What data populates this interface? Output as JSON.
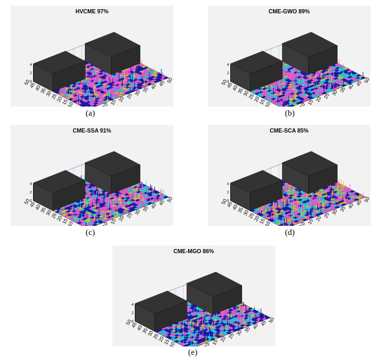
{
  "figure": {
    "panels": [
      {
        "id": "a",
        "title": "HVCME 97%",
        "caption": "(a)"
      },
      {
        "id": "b",
        "title": "CME-GWO 89%",
        "caption": "(b)"
      },
      {
        "id": "c",
        "title": "CME-SSA 91%",
        "caption": "(c)"
      },
      {
        "id": "d",
        "title": "CME-SCA 85%",
        "caption": "(d)"
      },
      {
        "id": "e",
        "title": "CME-MGO 86%",
        "caption": "(e)"
      }
    ]
  },
  "chart_data": [
    {
      "type": "bar3d",
      "title": "HVCME 97%",
      "xticks": [
        "0",
        "5",
        "10",
        "15",
        "20",
        "25",
        "30",
        "35",
        "40",
        "45",
        "50"
      ],
      "yticks": [
        "0",
        "5",
        "10",
        "15",
        "20",
        "25",
        "30",
        "35",
        "40",
        "45",
        "50"
      ],
      "zticks": [
        "0",
        "2",
        "4"
      ],
      "coverage_percent": 97,
      "dominant_colors": [
        "#ff66cc",
        "#1a1aa8",
        "#33dddd",
        "#dddd33"
      ],
      "obstacle_color": "#333333"
    },
    {
      "type": "bar3d",
      "title": "CME-GWO 89%",
      "xticks": [
        "0",
        "5",
        "10",
        "15",
        "20",
        "25",
        "30",
        "35",
        "40",
        "45",
        "50"
      ],
      "yticks": [
        "0",
        "5",
        "10",
        "15",
        "20",
        "25",
        "30",
        "35",
        "40",
        "45",
        "50"
      ],
      "zticks": [
        "0",
        "2",
        "4"
      ],
      "coverage_percent": 89,
      "dominant_colors": [
        "#ff66cc",
        "#1a1aa8",
        "#33dddd",
        "#dddd33"
      ],
      "obstacle_color": "#333333"
    },
    {
      "type": "bar3d",
      "title": "CME-SSA 91%",
      "xticks": [
        "0",
        "5",
        "10",
        "15",
        "20",
        "25",
        "30",
        "35",
        "40",
        "45",
        "50"
      ],
      "yticks": [
        "0",
        "5",
        "10",
        "15",
        "20",
        "25",
        "30",
        "35",
        "40",
        "45",
        "50"
      ],
      "zticks": [
        "0",
        "2",
        "4"
      ],
      "coverage_percent": 91,
      "dominant_colors": [
        "#ff66cc",
        "#1a1aa8",
        "#33dddd",
        "#dddd33"
      ],
      "obstacle_color": "#333333"
    },
    {
      "type": "bar3d",
      "title": "CME-SCA 85%",
      "xticks": [
        "0",
        "5",
        "10",
        "15",
        "20",
        "25",
        "30",
        "35",
        "40",
        "45",
        "50"
      ],
      "yticks": [
        "0",
        "5",
        "10",
        "15",
        "20",
        "25",
        "30",
        "35",
        "40",
        "45",
        "50"
      ],
      "zticks": [
        "0",
        "2",
        "4"
      ],
      "coverage_percent": 85,
      "dominant_colors": [
        "#ff66cc",
        "#1a1aa8",
        "#33dddd",
        "#e6cc33"
      ],
      "obstacle_color": "#333333"
    },
    {
      "type": "bar3d",
      "title": "CME-MGO 86%",
      "xticks": [
        "0",
        "5",
        "10",
        "15",
        "20",
        "25",
        "30",
        "35",
        "40",
        "45",
        "50"
      ],
      "yticks": [
        "0",
        "5",
        "10",
        "15",
        "20",
        "25",
        "30",
        "35",
        "40",
        "45",
        "50"
      ],
      "zticks": [
        "0",
        "2",
        "4"
      ],
      "coverage_percent": 86,
      "dominant_colors": [
        "#ff66cc",
        "#1a1aa8",
        "#33dddd",
        "#dddd33"
      ],
      "obstacle_color": "#333333"
    }
  ]
}
